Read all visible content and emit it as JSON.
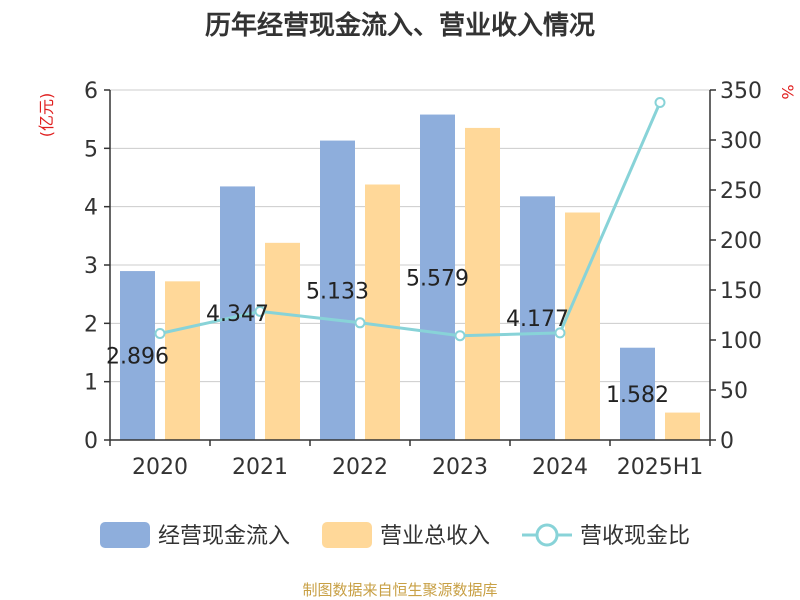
{
  "chart_data": {
    "type": "bar",
    "title": "历年经营现金流入、营业收入情况",
    "categories": [
      "2020",
      "2021",
      "2022",
      "2023",
      "2024",
      "2025H1"
    ],
    "left_axis_unit": "(亿元)",
    "right_axis_unit": "%",
    "ylim": [
      0,
      6
    ],
    "yticks": [
      "0",
      "1",
      "2",
      "3",
      "4",
      "5",
      "6"
    ],
    "y2lim": [
      0,
      350
    ],
    "y2ticks": [
      "0",
      "50",
      "100",
      "150",
      "200",
      "250",
      "300",
      "350"
    ],
    "series": [
      {
        "name": "经营现金流入",
        "type": "bar",
        "axis": "left",
        "color": "#8eaedc",
        "values": [
          2.896,
          4.347,
          5.133,
          5.579,
          4.177,
          1.582
        ],
        "labels": [
          "2.896",
          "4.347",
          "5.133",
          "5.579",
          "4.177",
          "1.582"
        ]
      },
      {
        "name": "营业总收入",
        "type": "bar",
        "axis": "left",
        "color": "#ffd899",
        "values": [
          2.72,
          3.38,
          4.38,
          5.35,
          3.9,
          0.47
        ]
      },
      {
        "name": "营收现金比",
        "type": "line",
        "axis": "right",
        "color": "#88d3d8",
        "values": [
          106.5,
          128.6,
          117.2,
          104.3,
          107.1,
          337.5
        ]
      }
    ],
    "legend_position": "bottom",
    "grid": true
  },
  "source": "制图数据来自恒生聚源数据库"
}
